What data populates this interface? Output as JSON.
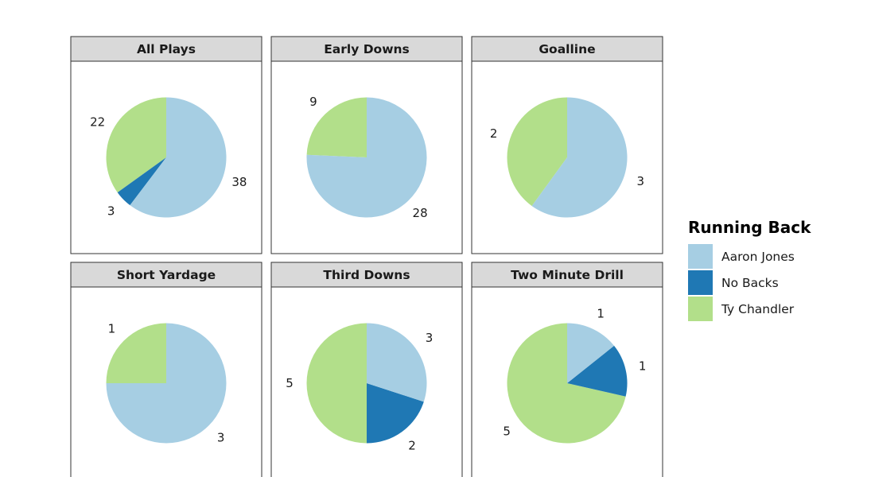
{
  "chart_data": {
    "type": "pie",
    "series_names": [
      "Aaron Jones",
      "No Backs",
      "Ty Chandler"
    ],
    "colors": {
      "Aaron Jones": "#a6cee3",
      "No Backs": "#1f78b4",
      "Ty Chandler": "#b2df8a"
    },
    "legend": {
      "title": "Running Back",
      "position": "right"
    },
    "facets": [
      {
        "label": "All Plays",
        "values": {
          "Aaron Jones": 38,
          "No Backs": 3,
          "Ty Chandler": 22
        }
      },
      {
        "label": "Early Downs",
        "values": {
          "Aaron Jones": 28,
          "Ty Chandler": 9
        }
      },
      {
        "label": "Goalline",
        "values": {
          "Aaron Jones": 3,
          "Ty Chandler": 2
        }
      },
      {
        "label": "Short Yardage",
        "values": {
          "Aaron Jones": 3,
          "Ty Chandler": 1
        }
      },
      {
        "label": "Third Downs",
        "values": {
          "Aaron Jones": 3,
          "No Backs": 2,
          "Ty Chandler": 5
        }
      },
      {
        "label": "Two Minute Drill",
        "values": {
          "Aaron Jones": 1,
          "No Backs": 1,
          "Ty Chandler": 5
        }
      }
    ]
  }
}
